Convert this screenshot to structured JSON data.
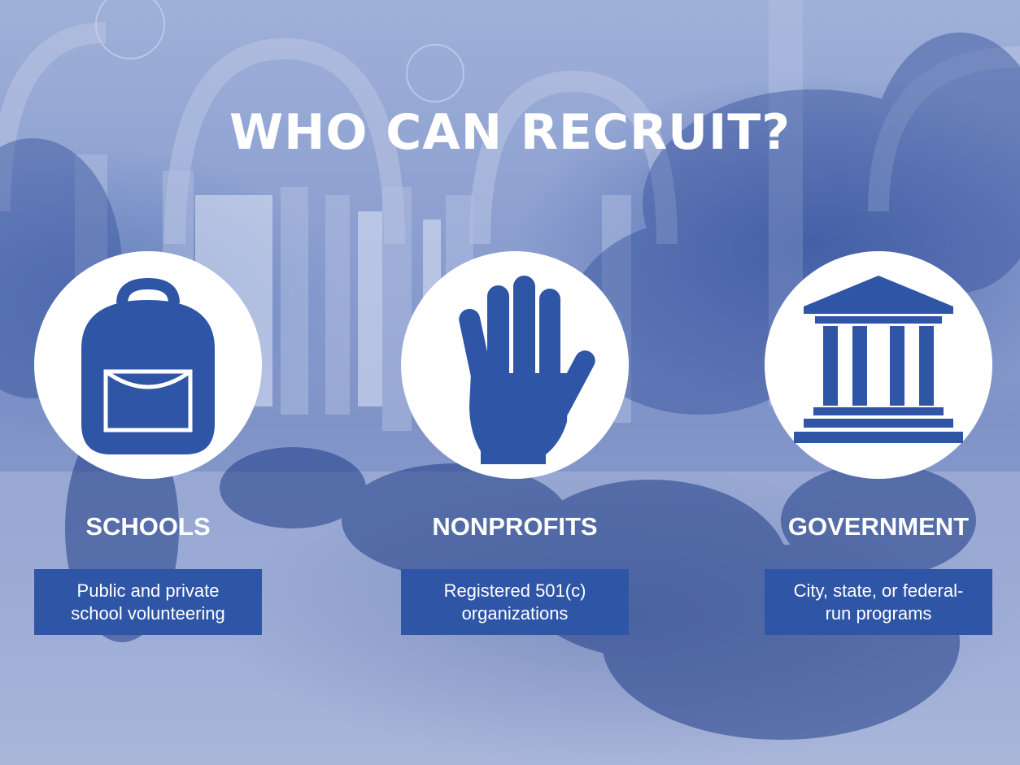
{
  "title": "WHO CAN RECRUIT?",
  "colors": {
    "brand_blue": "#2f55a6",
    "white": "#ffffff"
  },
  "categories": [
    {
      "icon": "backpack-icon",
      "label": "SCHOOLS",
      "desc_line1": "Public and private",
      "desc_line2": "school volunteering"
    },
    {
      "icon": "raised-hand-icon",
      "label": "NONPROFITS",
      "desc_line1": "Registered 501(c)",
      "desc_line2": "organizations"
    },
    {
      "icon": "government-building-icon",
      "label": "GOVERNMENT",
      "desc_line1": "City, state, or federal-",
      "desc_line2": "run programs"
    }
  ]
}
